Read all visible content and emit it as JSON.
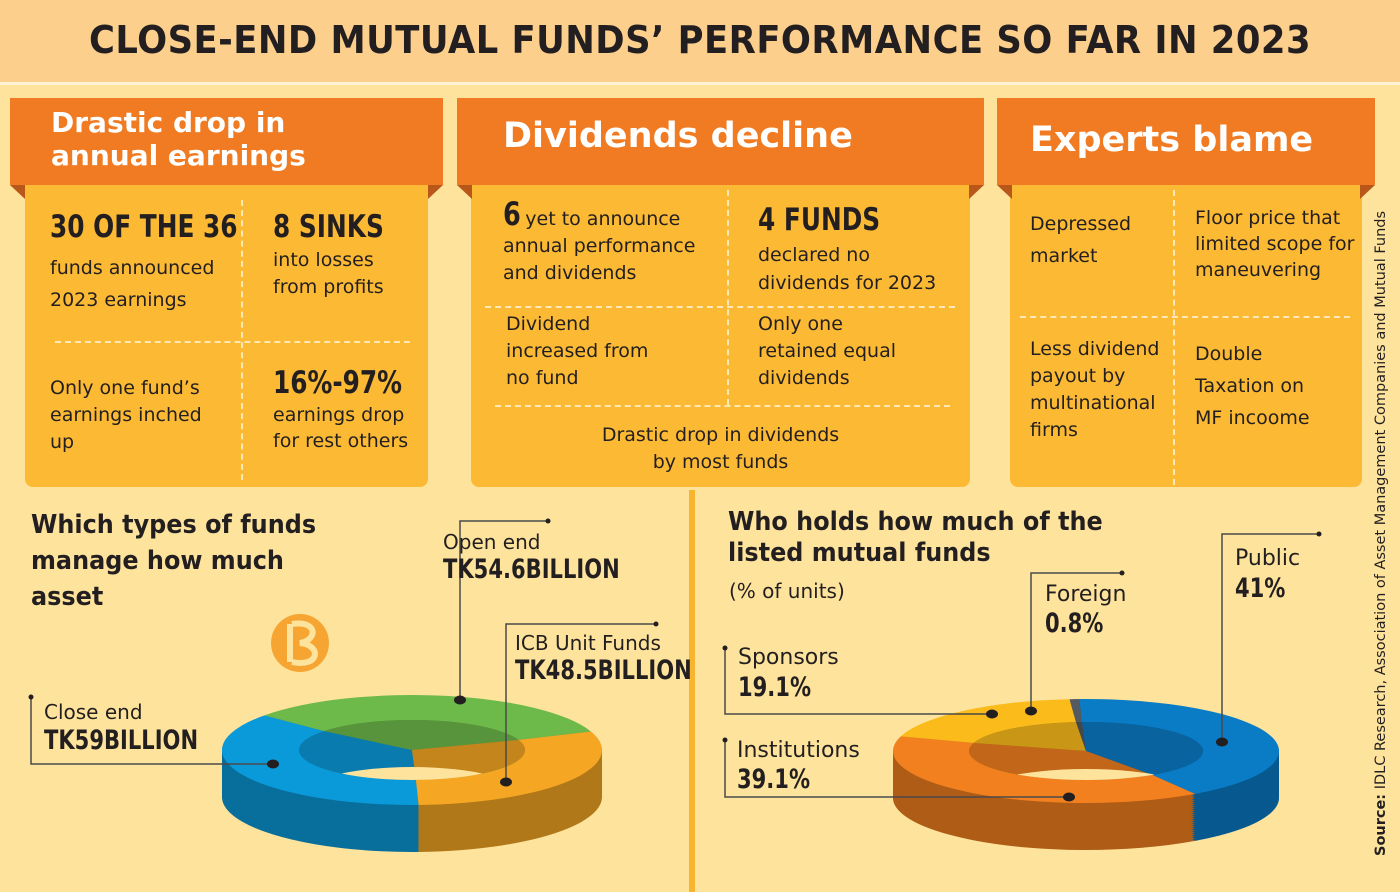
{
  "title": "CLOSE-END MUTUAL FUNDS’ PERFORMANCE SO FAR IN 2023",
  "panels": [
    {
      "header": "Drastic drop in\nannual earnings",
      "cells": [
        {
          "big": "30 OF THE 36",
          "text": "funds announced\n2023 earnings"
        },
        {
          "big": "8 SINKS",
          "text": "into losses\nfrom profits"
        },
        {
          "big": "",
          "text": "Only one fund’s\nearnings inched\nup"
        },
        {
          "big": "16%-97%",
          "text": "earnings drop\nfor rest others"
        }
      ]
    },
    {
      "header": "Dividends decline",
      "cells": [
        {
          "big": "6",
          "text_first": "yet to announce",
          "text": "annual performance\nand dividends"
        },
        {
          "big": "4 FUNDS",
          "text": "declared no\ndividends for 2023"
        },
        {
          "big": "",
          "text": "Dividend\nincreased from\nno fund"
        },
        {
          "big": "",
          "text": "Only one\nretained equal\ndividends"
        },
        {
          "big": "",
          "text": "Drastic drop in dividends\nby most funds"
        }
      ]
    },
    {
      "header": "Experts blame",
      "cells": [
        {
          "text": "Depressed\nmarket"
        },
        {
          "text": "Floor price that\nlimited scope for\nmaneuvering"
        },
        {
          "text": "Less dividend\npayout by\nmultinational\nfirms"
        },
        {
          "text": "Double\nTaxation on\nMF incoome"
        }
      ]
    }
  ],
  "source_label": "Source:",
  "source_text": " IDLC Research, Association of Asset Management Companies and Mutual Funds",
  "chart_data": [
    {
      "type": "pie",
      "variant": "3d-donut",
      "title": "Which types of funds\nmanage how much\nasset",
      "unit": "Tk billion",
      "categories": [
        "Close end",
        "Open end",
        "ICB Unit Funds"
      ],
      "values": [
        59,
        54.6,
        48.5
      ],
      "value_labels": [
        "TK59BILLION",
        "TK54.6BILLION",
        "TK48.5BILLION"
      ],
      "colors": [
        "#0b9ad9",
        "#6db94a",
        "#f5a623"
      ]
    },
    {
      "type": "pie",
      "variant": "3d-donut",
      "title": "Who holds how much of the\nlisted mutual funds",
      "subtitle": "(% of units)",
      "categories": [
        "Public",
        "Institutions",
        "Sponsors",
        "Foreign"
      ],
      "values": [
        41,
        39.1,
        19.1,
        0.8
      ],
      "value_labels": [
        "41%",
        "39.1%",
        "19.1%",
        "0.8%"
      ],
      "colors": [
        "#0a7cc6",
        "#f2801f",
        "#fbbb1a",
        "#555a60"
      ]
    }
  ]
}
